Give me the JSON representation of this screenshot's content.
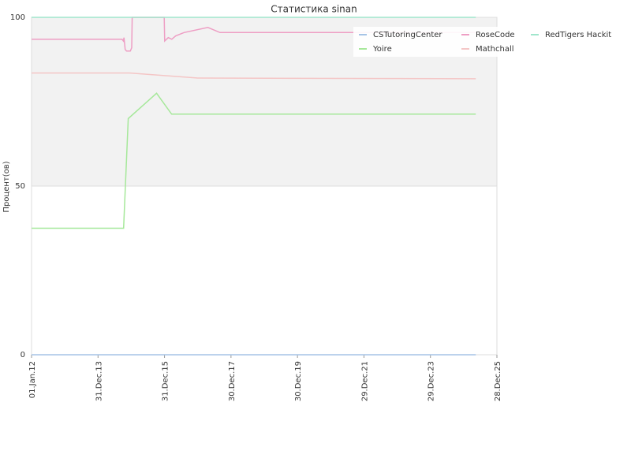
{
  "chart_data": {
    "type": "line",
    "title": "Статистика sinan",
    "y_label": "Процент(ов)",
    "xlim": [
      "2012-01-01",
      "2025-12-28"
    ],
    "xticks": [
      {
        "value": "2012-01-01",
        "label": "01.Jan.12"
      },
      {
        "value": "2013-12-31",
        "label": "31.Dec.13"
      },
      {
        "value": "2015-12-31",
        "label": "31.Dec.15"
      },
      {
        "value": "2017-12-30",
        "label": "30.Dec.17"
      },
      {
        "value": "2019-12-30",
        "label": "30.Dec.19"
      },
      {
        "value": "2021-12-29",
        "label": "29.Dec.21"
      },
      {
        "value": "2023-12-29",
        "label": "29.Dec.23"
      },
      {
        "value": "2025-12-28",
        "label": "28.Dec.25"
      }
    ],
    "ylim": [
      0,
      100
    ],
    "yticks": [
      0,
      50,
      100
    ],
    "grid": true,
    "series": [
      {
        "name": "CSTutoringCenter",
        "color": "#a6c4e6",
        "x": [
          "2012-01-01",
          "2025-05-10"
        ],
        "values": [
          0,
          0
        ]
      },
      {
        "name": "Yoire",
        "color": "#a6e89a",
        "x": [
          "2012-01-01",
          "2014-10-08",
          "2014-11-28",
          "2015-10-05",
          "2016-03-18",
          "2025-05-10"
        ],
        "values": [
          37.5,
          37.5,
          70,
          77.5,
          71.3,
          71.3
        ]
      },
      {
        "name": "RoseCode",
        "color": "#ee9ec4",
        "x": [
          "2012-01-01",
          "2014-09-20",
          "2014-10-05",
          "2014-10-12",
          "2014-10-25",
          "2014-11-10",
          "2014-12-20",
          "2015-01-05",
          "2015-01-10",
          "2015-12-28",
          "2016-01-02",
          "2016-02-10",
          "2016-03-20",
          "2016-05-01",
          "2016-08-01",
          "2017-04-20",
          "2017-09-01",
          "2025-05-10"
        ],
        "values": [
          93.5,
          93.5,
          93,
          94,
          90.5,
          90,
          90,
          91,
          100,
          100,
          93,
          94,
          93.5,
          94.5,
          95.5,
          97,
          95.5,
          95.5
        ]
      },
      {
        "name": "Mathchall",
        "color": "#f4c6c6",
        "x": [
          "2012-01-01",
          "2014-12-15",
          "2017-01-01",
          "2025-05-10"
        ],
        "values": [
          83.5,
          83.5,
          82,
          81.8
        ]
      },
      {
        "name": "RedTigers Hackit",
        "color": "#a0e6cc",
        "x": [
          "2012-01-01",
          "2025-05-10"
        ],
        "values": [
          100,
          100
        ]
      }
    ]
  }
}
